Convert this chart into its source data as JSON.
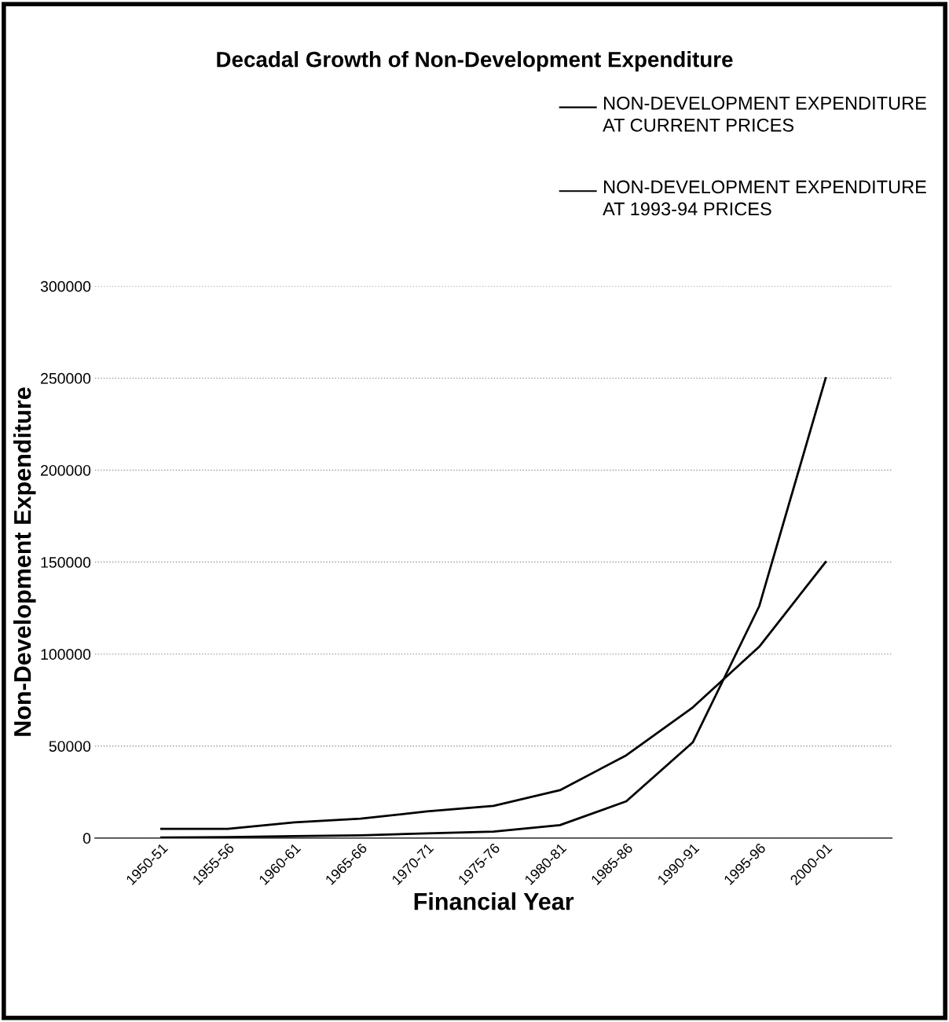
{
  "chart_data": {
    "type": "line",
    "title": "Decadal Growth of Non-Development Expenditure",
    "xlabel": "Financial Year",
    "ylabel": "Non-Development Expenditure",
    "categories": [
      "1950-51",
      "1955-56",
      "1960-61",
      "1965-66",
      "1970-71",
      "1975-76",
      "1980-81",
      "1985-86",
      "1990-91",
      "1995-96",
      "2000-01"
    ],
    "series": [
      {
        "name": "NON-DEVELOPMENT EXPENDITURE AT CURRENT PRICES",
        "color": "#000000",
        "values": [
          300,
          500,
          1000,
          1500,
          2500,
          3500,
          7000,
          20000,
          52000,
          126000,
          250000
        ]
      },
      {
        "name": "NON-DEVELOPMENT EXPENDITURE AT 1993-94 PRICES",
        "color": "#000000",
        "values": [
          5000,
          5000,
          8500,
          10500,
          14500,
          17500,
          26000,
          45000,
          71000,
          104000,
          150000
        ]
      }
    ],
    "ylim": [
      0,
      300000
    ],
    "yticks": [
      0,
      50000,
      100000,
      150000,
      200000,
      250000,
      300000
    ],
    "grid": "y",
    "legend": "top right",
    "marker": "none",
    "line_style": "solid"
  }
}
